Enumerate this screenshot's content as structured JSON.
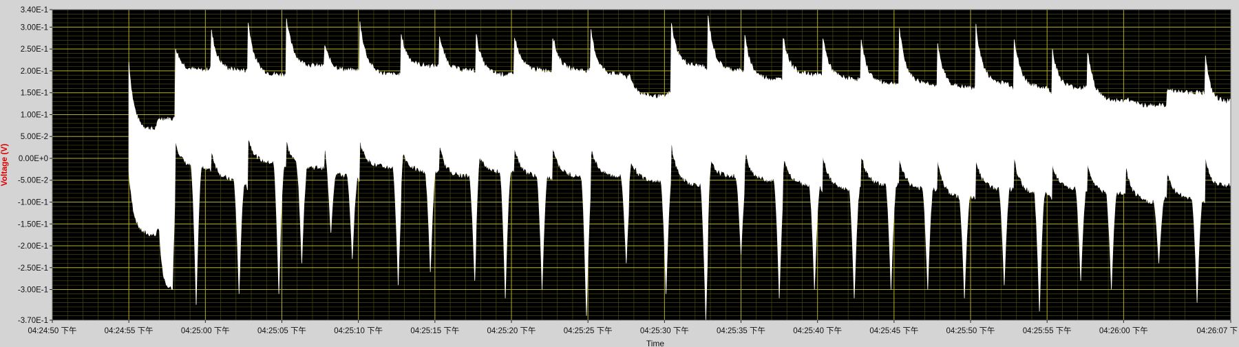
{
  "chart_data": {
    "type": "line",
    "title": "",
    "xlabel": "Time",
    "ylabel": "Voltage (V)",
    "ylim": [
      -0.37,
      0.34
    ],
    "x_range_seconds": [
      0,
      77
    ],
    "y_ticks": [
      {
        "value": 0.34,
        "label": "3.40E-1"
      },
      {
        "value": 0.3,
        "label": "3.00E-1"
      },
      {
        "value": 0.25,
        "label": "2.50E-1"
      },
      {
        "value": 0.2,
        "label": "2.00E-1"
      },
      {
        "value": 0.15,
        "label": "1.50E-1"
      },
      {
        "value": 0.1,
        "label": "1.00E-1"
      },
      {
        "value": 0.05,
        "label": "5.00E-2"
      },
      {
        "value": 0.0,
        "label": "0.00E+0"
      },
      {
        "value": -0.05,
        "label": "-5.00E-2"
      },
      {
        "value": -0.1,
        "label": "-1.00E-1"
      },
      {
        "value": -0.15,
        "label": "-1.50E-1"
      },
      {
        "value": -0.2,
        "label": "-2.00E-1"
      },
      {
        "value": -0.25,
        "label": "-2.50E-1"
      },
      {
        "value": -0.3,
        "label": "-3.00E-1"
      },
      {
        "value": -0.37,
        "label": "-3.70E-1"
      }
    ],
    "x_ticks": [
      {
        "value": 0,
        "label": "04:24:50 下午"
      },
      {
        "value": 5,
        "label": "04:24:55 下午"
      },
      {
        "value": 10,
        "label": "04:25:00 下午"
      },
      {
        "value": 15,
        "label": "04:25:05 下午"
      },
      {
        "value": 20,
        "label": "04:25:10 下午"
      },
      {
        "value": 25,
        "label": "04:25:15 下午"
      },
      {
        "value": 30,
        "label": "04:25:20 下午"
      },
      {
        "value": 35,
        "label": "04:25:25 下午"
      },
      {
        "value": 40,
        "label": "04:25:30 下午"
      },
      {
        "value": 45,
        "label": "04:25:35 下午"
      },
      {
        "value": 50,
        "label": "04:25:40 下午"
      },
      {
        "value": 55,
        "label": "04:25:45 下午"
      },
      {
        "value": 60,
        "label": "04:25:50 下午"
      },
      {
        "value": 65,
        "label": "04:25:55 下午"
      },
      {
        "value": 70,
        "label": "04:26:00 下午"
      },
      {
        "value": 77,
        "label": "04:26:07 下"
      }
    ],
    "grid": true,
    "series": [
      {
        "name": "Voltage",
        "start_seconds": 5.0,
        "end_seconds": 77.0,
        "pulses": [
          {
            "t": 5.0,
            "end": 7.0,
            "start_top": 0.22,
            "top": 0.065,
            "end_top": 0.09,
            "start_bottom": -0.03,
            "bottom": -0.175,
            "end_bottom": -0.16
          },
          {
            "t": 7.0,
            "end": 8.0,
            "start_top": 0.09,
            "top": 0.09,
            "end_top": 0.09,
            "start_bottom": -0.16,
            "bottom": -0.295,
            "end_bottom": -0.1
          },
          {
            "t": 8.0,
            "end": 10.4,
            "start_top": 0.26,
            "top": 0.2,
            "end_top": 0.21,
            "start_bottom": 0.05,
            "bottom": -0.02,
            "end_bottom": -0.03
          },
          {
            "t": 10.4,
            "end": 12.8,
            "start_top": 0.29,
            "top": 0.2,
            "end_top": 0.2,
            "start_bottom": 0.02,
            "bottom": -0.05,
            "end_bottom": -0.07
          },
          {
            "t": 12.8,
            "end": 15.3,
            "start_top": 0.31,
            "top": 0.19,
            "end_top": 0.19,
            "start_bottom": 0.05,
            "bottom": -0.01,
            "end_bottom": -0.02
          },
          {
            "t": 15.3,
            "end": 17.8,
            "start_top": 0.32,
            "top": 0.21,
            "end_top": 0.21,
            "start_bottom": 0.04,
            "bottom": -0.02,
            "end_bottom": -0.02
          },
          {
            "t": 17.8,
            "end": 20.1,
            "start_top": 0.26,
            "top": 0.2,
            "end_top": 0.2,
            "start_bottom": 0.02,
            "bottom": -0.04,
            "end_bottom": -0.05
          },
          {
            "t": 20.1,
            "end": 22.8,
            "start_top": 0.31,
            "top": 0.19,
            "end_top": 0.19,
            "start_bottom": 0.04,
            "bottom": -0.02,
            "end_bottom": -0.03
          },
          {
            "t": 22.8,
            "end": 25.3,
            "start_top": 0.28,
            "top": 0.21,
            "end_top": 0.21,
            "start_bottom": 0.03,
            "bottom": -0.03,
            "end_bottom": -0.03
          },
          {
            "t": 25.3,
            "end": 27.7,
            "start_top": 0.28,
            "top": 0.2,
            "end_top": 0.2,
            "start_bottom": 0.03,
            "bottom": -0.04,
            "end_bottom": -0.05
          },
          {
            "t": 27.7,
            "end": 30.2,
            "start_top": 0.28,
            "top": 0.19,
            "end_top": 0.19,
            "start_bottom": 0.03,
            "bottom": -0.03,
            "end_bottom": -0.03
          },
          {
            "t": 30.2,
            "end": 32.7,
            "start_top": 0.28,
            "top": 0.2,
            "end_top": 0.2,
            "start_bottom": 0.03,
            "bottom": -0.04,
            "end_bottom": -0.05
          },
          {
            "t": 32.7,
            "end": 35.2,
            "start_top": 0.28,
            "top": 0.2,
            "end_top": 0.2,
            "start_bottom": 0.03,
            "bottom": -0.04,
            "end_bottom": -0.05
          },
          {
            "t": 35.2,
            "end": 37.7,
            "start_top": 0.29,
            "top": 0.19,
            "end_top": 0.18,
            "start_bottom": 0.03,
            "bottom": -0.04,
            "end_bottom": -0.05
          },
          {
            "t": 37.7,
            "end": 40.4,
            "start_top": 0.19,
            "top": 0.14,
            "end_top": 0.15,
            "start_bottom": 0.01,
            "bottom": -0.05,
            "end_bottom": -0.05
          },
          {
            "t": 40.4,
            "end": 42.8,
            "start_top": 0.32,
            "top": 0.21,
            "end_top": 0.2,
            "start_bottom": 0.05,
            "bottom": -0.06,
            "end_bottom": -0.07
          },
          {
            "t": 42.8,
            "end": 45.2,
            "start_top": 0.34,
            "top": 0.2,
            "end_top": 0.2,
            "start_bottom": 0.02,
            "bottom": -0.04,
            "end_bottom": -0.04
          },
          {
            "t": 45.2,
            "end": 47.7,
            "start_top": 0.29,
            "top": 0.18,
            "end_top": 0.18,
            "start_bottom": 0.03,
            "bottom": -0.05,
            "end_bottom": -0.05
          },
          {
            "t": 47.7,
            "end": 50.3,
            "start_top": 0.29,
            "top": 0.19,
            "end_top": 0.19,
            "start_bottom": 0.02,
            "bottom": -0.06,
            "end_bottom": -0.07
          },
          {
            "t": 50.3,
            "end": 52.8,
            "start_top": 0.29,
            "top": 0.18,
            "end_top": 0.18,
            "start_bottom": 0.02,
            "bottom": -0.07,
            "end_bottom": -0.07
          },
          {
            "t": 52.8,
            "end": 55.3,
            "start_top": 0.28,
            "top": 0.17,
            "end_top": 0.17,
            "start_bottom": 0.02,
            "bottom": -0.06,
            "end_bottom": -0.06
          },
          {
            "t": 55.3,
            "end": 57.8,
            "start_top": 0.31,
            "top": 0.17,
            "end_top": 0.16,
            "start_bottom": 0.01,
            "bottom": -0.07,
            "end_bottom": -0.07
          },
          {
            "t": 57.8,
            "end": 60.3,
            "start_top": 0.27,
            "top": 0.16,
            "end_top": 0.16,
            "start_bottom": 0.01,
            "bottom": -0.09,
            "end_bottom": -0.09
          },
          {
            "t": 60.3,
            "end": 62.8,
            "start_top": 0.32,
            "top": 0.17,
            "end_top": 0.16,
            "start_bottom": 0.01,
            "bottom": -0.07,
            "end_bottom": -0.07
          },
          {
            "t": 62.8,
            "end": 65.3,
            "start_top": 0.29,
            "top": 0.16,
            "end_top": 0.15,
            "start_bottom": 0.01,
            "bottom": -0.08,
            "end_bottom": -0.09
          },
          {
            "t": 65.3,
            "end": 67.6,
            "start_top": 0.26,
            "top": 0.16,
            "end_top": 0.16,
            "start_bottom": 0.0,
            "bottom": -0.07,
            "end_bottom": -0.07
          },
          {
            "t": 67.6,
            "end": 70.1,
            "start_top": 0.26,
            "top": 0.13,
            "end_top": 0.13,
            "start_bottom": 0.0,
            "bottom": -0.08,
            "end_bottom": -0.08
          },
          {
            "t": 70.1,
            "end": 72.8,
            "start_top": 0.14,
            "top": 0.12,
            "end_top": 0.12,
            "start_bottom": -0.01,
            "bottom": -0.1,
            "end_bottom": -0.09
          },
          {
            "t": 72.8,
            "end": 75.3,
            "start_top": 0.16,
            "top": 0.15,
            "end_top": 0.15,
            "start_bottom": -0.02,
            "bottom": -0.09,
            "end_bottom": -0.1
          },
          {
            "t": 75.3,
            "end": 77.0,
            "start_top": 0.26,
            "top": 0.13,
            "end_top": 0.13,
            "start_bottom": 0.02,
            "bottom": -0.06,
            "end_bottom": -0.06
          }
        ],
        "negative_spikes": [
          {
            "t": 7.6,
            "value": -0.295
          },
          {
            "t": 9.4,
            "value": -0.335
          },
          {
            "t": 12.2,
            "value": -0.31
          },
          {
            "t": 14.8,
            "value": -0.31
          },
          {
            "t": 16.3,
            "value": -0.24
          },
          {
            "t": 18.2,
            "value": -0.17
          },
          {
            "t": 19.6,
            "value": -0.23
          },
          {
            "t": 22.6,
            "value": -0.29
          },
          {
            "t": 24.7,
            "value": -0.26
          },
          {
            "t": 27.6,
            "value": -0.28
          },
          {
            "t": 29.6,
            "value": -0.32
          },
          {
            "t": 32.0,
            "value": -0.3
          },
          {
            "t": 34.9,
            "value": -0.36
          },
          {
            "t": 37.5,
            "value": -0.24
          },
          {
            "t": 40.1,
            "value": -0.31
          },
          {
            "t": 42.7,
            "value": -0.37
          },
          {
            "t": 45.0,
            "value": -0.22
          },
          {
            "t": 47.5,
            "value": -0.32
          },
          {
            "t": 49.8,
            "value": -0.3
          },
          {
            "t": 52.4,
            "value": -0.32
          },
          {
            "t": 54.8,
            "value": -0.3
          },
          {
            "t": 57.2,
            "value": -0.3
          },
          {
            "t": 59.6,
            "value": -0.32
          },
          {
            "t": 62.2,
            "value": -0.29
          },
          {
            "t": 64.5,
            "value": -0.35
          },
          {
            "t": 67.2,
            "value": -0.28
          },
          {
            "t": 69.2,
            "value": -0.3
          },
          {
            "t": 72.3,
            "value": -0.24
          },
          {
            "t": 74.8,
            "value": -0.33
          }
        ]
      }
    ],
    "colors": {
      "plot_background": "#000000",
      "major_grid": "#b6ae2a",
      "minor_grid": "#4a4a10",
      "trace": "#ffffff",
      "ylabel_color": "#e00000",
      "frame_background": "#d4d4d4"
    }
  }
}
